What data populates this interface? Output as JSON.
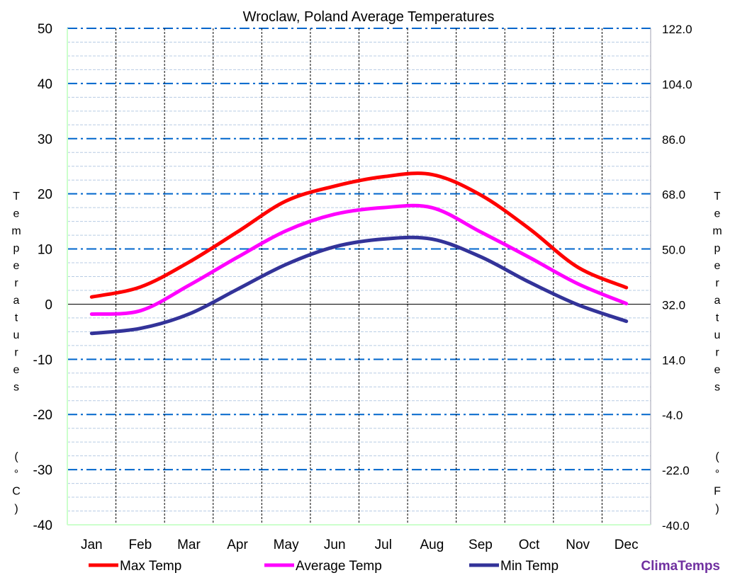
{
  "chart_data": {
    "type": "line",
    "title": "Wroclaw, Poland Average Temperatures",
    "ylabel_left": "Temperatures (°C)",
    "ylabel_right": "Temperatures (°F)",
    "categories": [
      "Jan",
      "Feb",
      "Mar",
      "Apr",
      "May",
      "Jun",
      "Jul",
      "Aug",
      "Sep",
      "Oct",
      "Nov",
      "Dec"
    ],
    "ylim": [
      -40,
      50
    ],
    "yticks_left": [
      "50",
      "40",
      "30",
      "20",
      "10",
      "0",
      "-10",
      "-20",
      "-30",
      "-40"
    ],
    "yticks_right": [
      "122.0",
      "104.0",
      "86.0",
      "68.0",
      "50.0",
      "32.0",
      "14.0",
      "-4.0",
      "-22.0",
      "-40.0"
    ],
    "grid": true,
    "legend_position": "bottom",
    "series": [
      {
        "name": "Max Temp",
        "color": "#ff0000",
        "values": [
          1.3,
          3.1,
          7.6,
          13.1,
          18.7,
          21.4,
          23.1,
          23.5,
          19.8,
          13.7,
          6.7,
          3.0
        ]
      },
      {
        "name": "Average Temp",
        "color": "#ff00ff",
        "values": [
          -1.8,
          -1.2,
          3.4,
          8.5,
          13.3,
          16.3,
          17.5,
          17.5,
          13.1,
          8.5,
          3.7,
          0.1
        ]
      },
      {
        "name": "Min Temp",
        "color": "#333399",
        "values": [
          -5.3,
          -4.4,
          -1.8,
          2.7,
          7.2,
          10.4,
          11.8,
          11.8,
          8.6,
          4.0,
          -0.1,
          -3.1
        ]
      }
    ]
  },
  "brand": {
    "text": "ClimaTemps",
    "color": "#7030a0"
  }
}
